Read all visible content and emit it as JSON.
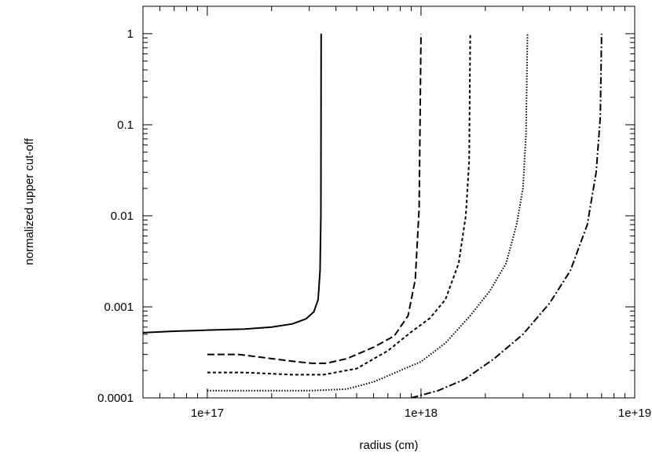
{
  "chart_data": {
    "type": "line",
    "title": "",
    "xlabel": "radius (cm)",
    "ylabel": "normalized upper cut-off",
    "x_scale": "log",
    "y_scale": "log",
    "xlim": [
      5e+16,
      1e+19
    ],
    "ylim": [
      0.0001,
      2
    ],
    "grid": false,
    "legend": "none",
    "x_ticks": [
      {
        "value": 1e+17,
        "label": "1e+17"
      },
      {
        "value": 1e+18,
        "label": "1e+18"
      },
      {
        "value": 1e+19,
        "label": "1e+19"
      }
    ],
    "y_ticks": [
      {
        "value": 1,
        "label": "1"
      },
      {
        "value": 0.1,
        "label": "0.1"
      },
      {
        "value": 0.01,
        "label": "0.01"
      },
      {
        "value": 0.001,
        "label": "0.001"
      },
      {
        "value": 0.0001,
        "label": "0.0001"
      }
    ],
    "series": [
      {
        "style": "solid",
        "color": "#000000",
        "points": [
          [
            5e+16,
            0.00052
          ],
          [
            7e+16,
            0.00054
          ],
          [
            1e+17,
            0.000555
          ],
          [
            1.5e+17,
            0.00057
          ],
          [
            2e+17,
            0.0006
          ],
          [
            2.5e+17,
            0.00065
          ],
          [
            2.9e+17,
            0.00074
          ],
          [
            3.15e+17,
            0.00088
          ],
          [
            3.3e+17,
            0.0012
          ],
          [
            3.37e+17,
            0.0025
          ],
          [
            3.4e+17,
            0.01
          ],
          [
            3.41e+17,
            1
          ]
        ]
      },
      {
        "style": "long-dash",
        "color": "#000000",
        "points": [
          [
            1e+17,
            0.0003
          ],
          [
            1.4e+17,
            0.0003
          ],
          [
            2e+17,
            0.00027
          ],
          [
            2.6e+17,
            0.00025
          ],
          [
            3.1e+17,
            0.00024
          ],
          [
            3.6e+17,
            0.00024
          ],
          [
            4.5e+17,
            0.00027
          ],
          [
            6e+17,
            0.00036
          ],
          [
            7.5e+17,
            0.00048
          ],
          [
            8.7e+17,
            0.0008
          ],
          [
            9.4e+17,
            0.002
          ],
          [
            9.8e+17,
            0.012
          ],
          [
            1e+18,
            1
          ]
        ]
      },
      {
        "style": "short-dash",
        "color": "#000000",
        "points": [
          [
            1e+17,
            0.00019
          ],
          [
            1.5e+17,
            0.00019
          ],
          [
            2.5e+17,
            0.00018
          ],
          [
            3.5e+17,
            0.00018
          ],
          [
            5e+17,
            0.00021
          ],
          [
            7e+17,
            0.00033
          ],
          [
            9e+17,
            0.00053
          ],
          [
            1.1e+18,
            0.00075
          ],
          [
            1.3e+18,
            0.0012
          ],
          [
            1.5e+18,
            0.003
          ],
          [
            1.62e+18,
            0.01
          ],
          [
            1.68e+18,
            0.04
          ],
          [
            1.7e+18,
            1
          ]
        ]
      },
      {
        "style": "dotted",
        "color": "#000000",
        "points": [
          [
            1e+17,
            0.00012
          ],
          [
            2e+17,
            0.00012
          ],
          [
            3e+17,
            0.00012
          ],
          [
            4.5e+17,
            0.000125
          ],
          [
            6e+17,
            0.00015
          ],
          [
            8e+17,
            0.0002
          ],
          [
            1e+18,
            0.00025
          ],
          [
            1.3e+18,
            0.0004
          ],
          [
            1.7e+18,
            0.0008
          ],
          [
            2.1e+18,
            0.0015
          ],
          [
            2.5e+18,
            0.003
          ],
          [
            2.8e+18,
            0.008
          ],
          [
            3e+18,
            0.02
          ],
          [
            3.1e+18,
            0.08
          ],
          [
            3.15e+18,
            1
          ]
        ]
      },
      {
        "style": "dash-dot",
        "color": "#000000",
        "points": [
          [
            9e+17,
            0.0001
          ],
          [
            1.2e+18,
            0.00012
          ],
          [
            1.6e+18,
            0.00016
          ],
          [
            2.2e+18,
            0.00027
          ],
          [
            3e+18,
            0.0005
          ],
          [
            4e+18,
            0.0011
          ],
          [
            5e+18,
            0.0025
          ],
          [
            6e+18,
            0.008
          ],
          [
            6.6e+18,
            0.03
          ],
          [
            6.9e+18,
            0.12
          ],
          [
            7e+18,
            1
          ]
        ]
      }
    ]
  }
}
